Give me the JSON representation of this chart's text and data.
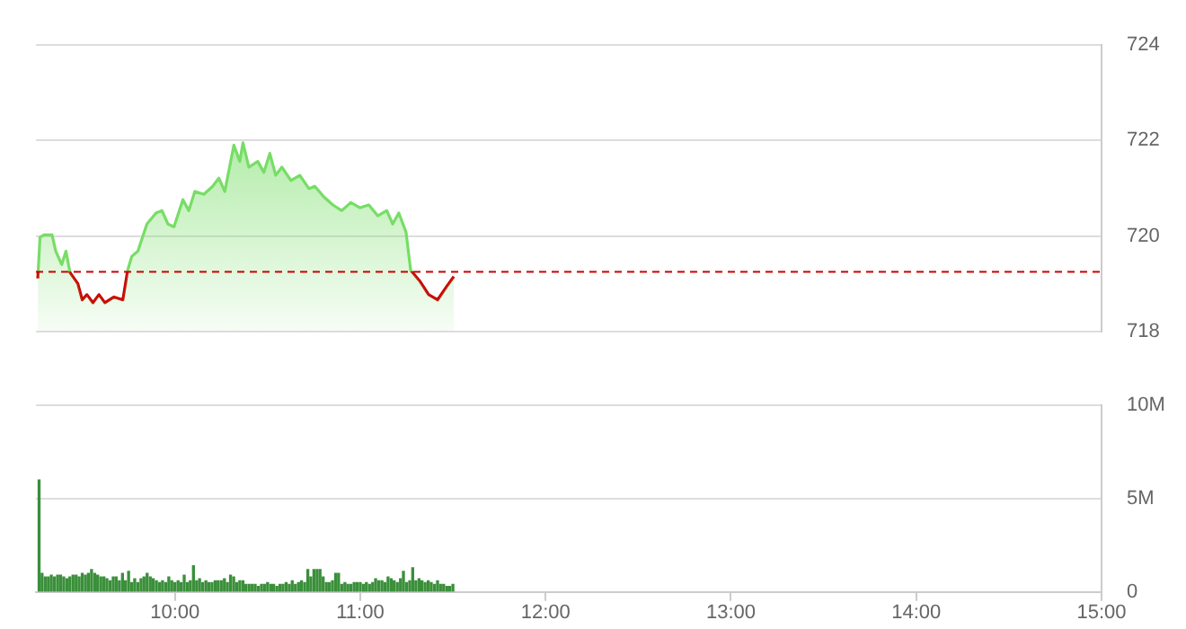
{
  "chart_data": [
    {
      "type": "area",
      "xlim": [
        9.25,
        15
      ],
      "ylim": [
        718,
        724
      ],
      "yticks": [
        718,
        720,
        722,
        724
      ],
      "grid": "y",
      "legend": false,
      "tick_labels": "y",
      "marker": "none",
      "ref_lines": [
        {
          "axis": "y",
          "value": 719.25,
          "color": "#cc0000",
          "line_style": "dashed"
        }
      ],
      "series": [
        {
          "color": "#77dd66",
          "x": [
            9.26,
            9.272,
            9.292,
            9.337,
            9.357,
            9.389,
            9.412,
            9.434,
            9.476,
            9.5,
            9.525,
            9.558,
            9.59,
            9.622,
            9.67,
            9.719,
            9.745,
            9.767,
            9.8,
            9.849,
            9.898,
            9.93,
            9.962,
            9.995,
            10.043,
            10.075,
            10.107,
            10.156,
            10.204,
            10.237,
            10.269,
            10.318,
            10.35,
            10.367,
            10.399,
            10.447,
            10.48,
            10.512,
            10.544,
            10.577,
            10.626,
            10.674,
            10.723,
            10.755,
            10.803,
            10.852,
            10.9,
            10.949,
            10.998,
            11.046,
            11.095,
            11.143,
            11.175,
            11.208,
            11.247,
            11.272,
            11.32,
            11.369,
            11.417,
            11.466,
            11.505
          ],
          "values": [
            719.11,
            719.97,
            720.02,
            720.02,
            719.68,
            719.4,
            719.68,
            719.23,
            719.0,
            718.66,
            718.77,
            718.6,
            718.77,
            718.6,
            718.72,
            718.66,
            719.28,
            719.57,
            719.68,
            720.25,
            720.48,
            720.53,
            720.25,
            720.19,
            720.76,
            720.53,
            720.93,
            720.87,
            721.04,
            721.21,
            720.93,
            721.9,
            721.56,
            721.95,
            721.44,
            721.56,
            721.33,
            721.73,
            721.27,
            721.44,
            721.16,
            721.27,
            720.99,
            721.04,
            720.82,
            720.65,
            720.53,
            720.7,
            720.59,
            720.65,
            720.42,
            720.53,
            720.25,
            720.48,
            720.08,
            719.28,
            719.06,
            718.77,
            718.66,
            718.94,
            719.15
          ]
        }
      ]
    },
    {
      "type": "bar",
      "xlim": [
        9.25,
        15
      ],
      "xticks": [
        {
          "value": 10,
          "label": "10:00"
        },
        {
          "value": 11,
          "label": "11:00"
        },
        {
          "value": 12,
          "label": "12:00"
        },
        {
          "value": 13,
          "label": "13:00"
        },
        {
          "value": 14,
          "label": "14:00"
        },
        {
          "value": 15,
          "label": "15:00"
        }
      ],
      "ylim": [
        0,
        10
      ],
      "yticks": [
        0,
        {
          "value": 5,
          "label": "5M"
        },
        {
          "value": 10,
          "label": "10M"
        }
      ],
      "grid": "y",
      "legend": false,
      "series": [
        {
          "color": "#3a8f3a",
          "x": [
            9.267,
            9.283,
            9.3,
            9.317,
            9.333,
            9.35,
            9.367,
            9.383,
            9.4,
            9.417,
            9.433,
            9.45,
            9.467,
            9.483,
            9.5,
            9.517,
            9.533,
            9.55,
            9.567,
            9.583,
            9.6,
            9.617,
            9.633,
            9.65,
            9.667,
            9.683,
            9.7,
            9.717,
            9.733,
            9.75,
            9.767,
            9.783,
            9.8,
            9.817,
            9.833,
            9.85,
            9.867,
            9.883,
            9.9,
            9.917,
            9.933,
            9.95,
            9.967,
            9.983,
            10,
            10.017,
            10.033,
            10.05,
            10.067,
            10.083,
            10.1,
            10.117,
            10.133,
            10.15,
            10.167,
            10.183,
            10.2,
            10.217,
            10.233,
            10.25,
            10.267,
            10.283,
            10.3,
            10.317,
            10.333,
            10.35,
            10.367,
            10.383,
            10.4,
            10.417,
            10.433,
            10.45,
            10.467,
            10.483,
            10.5,
            10.517,
            10.533,
            10.55,
            10.567,
            10.583,
            10.6,
            10.617,
            10.633,
            10.65,
            10.667,
            10.683,
            10.7,
            10.717,
            10.733,
            10.75,
            10.767,
            10.783,
            10.8,
            10.817,
            10.833,
            10.85,
            10.867,
            10.883,
            10.9,
            10.917,
            10.933,
            10.95,
            10.967,
            10.983,
            11,
            11.017,
            11.033,
            11.05,
            11.067,
            11.083,
            11.1,
            11.117,
            11.133,
            11.15,
            11.167,
            11.183,
            11.2,
            11.217,
            11.233,
            11.25,
            11.267,
            11.283,
            11.3,
            11.317,
            11.333,
            11.35,
            11.367,
            11.383,
            11.4,
            11.417,
            11.433,
            11.45,
            11.467,
            11.483,
            11.5
          ],
          "values": [
            6.0,
            1.0,
            0.8,
            0.8,
            0.9,
            0.8,
            0.9,
            0.9,
            0.8,
            0.7,
            0.8,
            0.9,
            0.9,
            0.8,
            1.0,
            0.9,
            1.0,
            1.2,
            1.0,
            0.9,
            0.8,
            0.8,
            0.7,
            0.6,
            0.8,
            0.8,
            0.6,
            1.0,
            0.6,
            1.1,
            0.5,
            0.7,
            0.5,
            0.7,
            0.8,
            1.0,
            0.8,
            0.7,
            0.6,
            0.5,
            0.6,
            0.5,
            0.8,
            0.6,
            0.5,
            0.6,
            0.5,
            0.9,
            0.5,
            0.6,
            1.4,
            0.6,
            0.7,
            0.5,
            0.6,
            0.5,
            0.5,
            0.6,
            0.6,
            0.6,
            0.7,
            0.5,
            0.9,
            0.8,
            0.5,
            0.6,
            0.6,
            0.4,
            0.4,
            0.4,
            0.4,
            0.3,
            0.4,
            0.4,
            0.5,
            0.4,
            0.4,
            0.3,
            0.4,
            0.4,
            0.5,
            0.4,
            0.6,
            0.4,
            0.5,
            0.6,
            0.5,
            1.2,
            0.8,
            1.2,
            1.2,
            1.2,
            0.8,
            0.5,
            0.5,
            0.6,
            1.0,
            1.0,
            0.4,
            0.5,
            0.4,
            0.4,
            0.5,
            0.5,
            0.5,
            0.4,
            0.5,
            0.4,
            0.5,
            0.7,
            0.6,
            0.6,
            0.5,
            0.8,
            0.7,
            0.6,
            0.5,
            0.7,
            1.1,
            0.5,
            0.6,
            1.3,
            0.6,
            0.7,
            0.6,
            0.5,
            0.6,
            0.5,
            0.4,
            0.6,
            0.4,
            0.4,
            0.3,
            0.3,
            0.4
          ]
        }
      ]
    }
  ]
}
